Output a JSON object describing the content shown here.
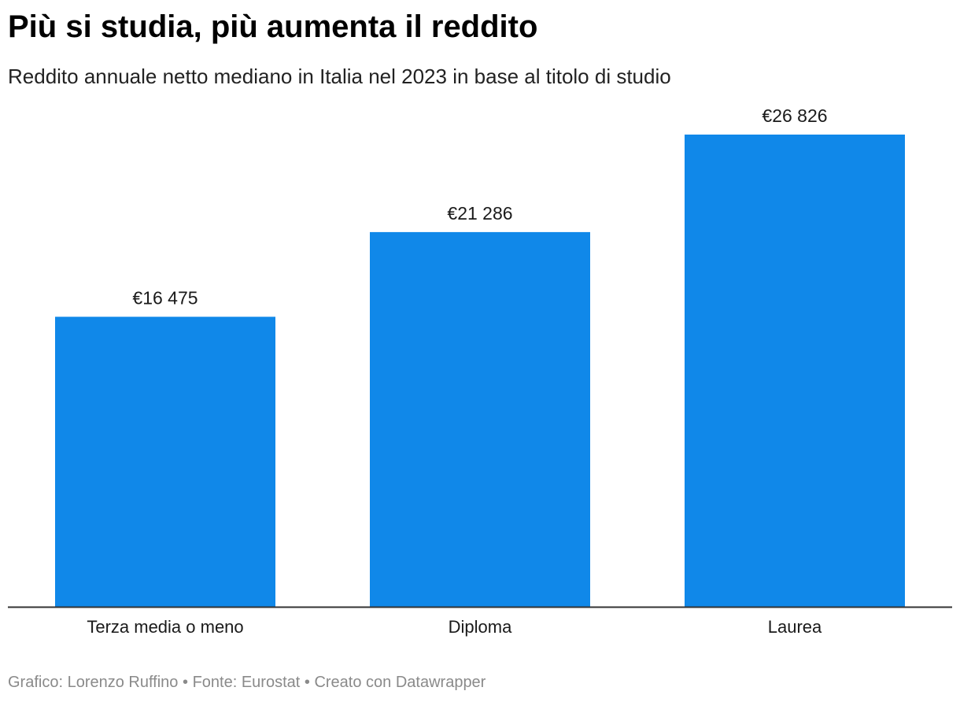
{
  "title": "Più si studia, più aumenta il reddito",
  "subtitle": "Reddito annuale netto mediano in Italia nel 2023 in base al titolo di studio",
  "footer": {
    "author": "Grafico: Lorenzo Ruffino",
    "source": "Fonte: Eurostat",
    "credit": "Creato con Datawrapper",
    "separator": "•"
  },
  "colors": {
    "bar": "#1088e9",
    "axis": "#333333",
    "label": "#1a1a1a"
  },
  "chart_data": {
    "type": "bar",
    "title": "Più si studia, più aumenta il reddito",
    "subtitle": "Reddito annuale netto mediano in Italia nel 2023 in base al titolo di studio",
    "categories": [
      "Terza media o meno",
      "Diploma",
      "Laurea"
    ],
    "values": [
      16475,
      21286,
      26826
    ],
    "value_labels": [
      "€16 475",
      "€21 286",
      "€26 826"
    ],
    "xlabel": "",
    "ylabel": "",
    "ylim": [
      0,
      30000
    ],
    "grid": false
  }
}
